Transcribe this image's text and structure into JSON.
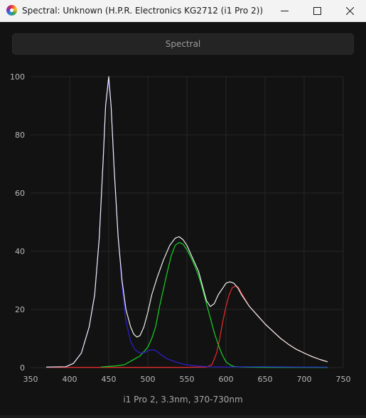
{
  "window": {
    "title": "Spectral: Unknown (H.P.R. Electronics KG2712 (i1 Pro 2))",
    "icon": "spectral-app-icon",
    "controls": [
      "minimize-icon",
      "maximize-icon",
      "close-icon"
    ]
  },
  "tab": {
    "label": "Spectral"
  },
  "caption": "i1 Pro 2, 3.3nm, 370-730nm",
  "colors": {
    "white": "#f0f0f0",
    "blue": "#2e1fd6",
    "green": "#15d424",
    "red": "#ec2a2a",
    "grid": "#262626",
    "tick": "#b9b9b9"
  },
  "chart_data": {
    "type": "line",
    "title": "",
    "xlabel": "",
    "ylabel": "",
    "xlim": [
      350,
      750
    ],
    "ylim": [
      0,
      100
    ],
    "xticks": [
      350,
      400,
      450,
      500,
      550,
      600,
      650,
      700,
      750
    ],
    "yticks": [
      0,
      20,
      40,
      60,
      80,
      100
    ],
    "grid": true,
    "series": [
      {
        "color": "white",
        "points": [
          [
            370,
            0.2
          ],
          [
            395,
            0.3
          ],
          [
            405,
            1.5
          ],
          [
            415,
            5
          ],
          [
            425,
            14
          ],
          [
            432,
            25
          ],
          [
            438,
            45
          ],
          [
            443,
            72
          ],
          [
            446,
            90
          ],
          [
            450,
            100
          ],
          [
            453,
            90
          ],
          [
            457,
            68
          ],
          [
            462,
            45
          ],
          [
            467,
            30
          ],
          [
            472,
            20
          ],
          [
            478,
            14
          ],
          [
            482,
            11.5
          ],
          [
            486,
            10.5
          ],
          [
            490,
            11
          ],
          [
            495,
            14
          ],
          [
            500,
            19
          ],
          [
            505,
            25
          ],
          [
            512,
            31
          ],
          [
            520,
            37
          ],
          [
            528,
            42
          ],
          [
            535,
            44.5
          ],
          [
            540,
            45
          ],
          [
            545,
            44
          ],
          [
            550,
            42
          ],
          [
            555,
            39
          ],
          [
            560,
            36
          ],
          [
            565,
            33
          ],
          [
            570,
            28
          ],
          [
            575,
            23
          ],
          [
            580,
            21
          ],
          [
            585,
            22
          ],
          [
            590,
            25
          ],
          [
            595,
            27
          ],
          [
            600,
            29
          ],
          [
            605,
            29.5
          ],
          [
            610,
            29
          ],
          [
            615,
            27.5
          ],
          [
            620,
            25
          ],
          [
            630,
            21
          ],
          [
            640,
            18
          ],
          [
            650,
            15
          ],
          [
            660,
            12.5
          ],
          [
            670,
            10
          ],
          [
            680,
            8
          ],
          [
            690,
            6.3
          ],
          [
            700,
            5
          ],
          [
            710,
            3.8
          ],
          [
            720,
            2.8
          ],
          [
            730,
            2
          ]
        ]
      },
      {
        "color": "blue",
        "points": [
          [
            370,
            0.2
          ],
          [
            395,
            0.3
          ],
          [
            405,
            1.5
          ],
          [
            415,
            5
          ],
          [
            425,
            14
          ],
          [
            432,
            25
          ],
          [
            438,
            45
          ],
          [
            443,
            72
          ],
          [
            446,
            90
          ],
          [
            450,
            99
          ],
          [
            453,
            90
          ],
          [
            457,
            68
          ],
          [
            462,
            45
          ],
          [
            467,
            28
          ],
          [
            472,
            16
          ],
          [
            478,
            9
          ],
          [
            484,
            6
          ],
          [
            490,
            5
          ],
          [
            496,
            5.2
          ],
          [
            502,
            6
          ],
          [
            507,
            6.2
          ],
          [
            512,
            5.5
          ],
          [
            518,
            4.2
          ],
          [
            525,
            3
          ],
          [
            535,
            2
          ],
          [
            545,
            1.2
          ],
          [
            560,
            0.6
          ],
          [
            580,
            0.3
          ],
          [
            600,
            0.2
          ],
          [
            620,
            0.3
          ],
          [
            650,
            0.3
          ],
          [
            700,
            0.2
          ],
          [
            730,
            0.2
          ]
        ]
      },
      {
        "color": "green",
        "points": [
          [
            440,
            0.2
          ],
          [
            450,
            0.4
          ],
          [
            460,
            0.6
          ],
          [
            470,
            1
          ],
          [
            480,
            2.5
          ],
          [
            490,
            4
          ],
          [
            500,
            7
          ],
          [
            505,
            10
          ],
          [
            510,
            14
          ],
          [
            515,
            21
          ],
          [
            520,
            27
          ],
          [
            525,
            33
          ],
          [
            530,
            38.5
          ],
          [
            535,
            42
          ],
          [
            540,
            43
          ],
          [
            545,
            42.5
          ],
          [
            550,
            40.5
          ],
          [
            555,
            38
          ],
          [
            560,
            35
          ],
          [
            565,
            31.5
          ],
          [
            570,
            27
          ],
          [
            575,
            22
          ],
          [
            580,
            17
          ],
          [
            585,
            12
          ],
          [
            590,
            8
          ],
          [
            595,
            4.5
          ],
          [
            600,
            2
          ],
          [
            605,
            1
          ],
          [
            610,
            0.4
          ],
          [
            620,
            0.2
          ],
          [
            650,
            0.1
          ],
          [
            730,
            0.1
          ]
        ]
      },
      {
        "color": "red",
        "points": [
          [
            370,
            0.1
          ],
          [
            550,
            0.1
          ],
          [
            575,
            0.2
          ],
          [
            582,
            1
          ],
          [
            588,
            5
          ],
          [
            592,
            10
          ],
          [
            596,
            16
          ],
          [
            600,
            21
          ],
          [
            604,
            25
          ],
          [
            608,
            27.5
          ],
          [
            612,
            28
          ],
          [
            616,
            27.5
          ],
          [
            620,
            25.5
          ],
          [
            630,
            21
          ],
          [
            640,
            18
          ],
          [
            650,
            15
          ],
          [
            660,
            12.5
          ],
          [
            670,
            10
          ],
          [
            680,
            8
          ],
          [
            690,
            6.3
          ],
          [
            700,
            5
          ],
          [
            710,
            3.8
          ],
          [
            720,
            2.8
          ],
          [
            730,
            2
          ]
        ]
      }
    ]
  }
}
